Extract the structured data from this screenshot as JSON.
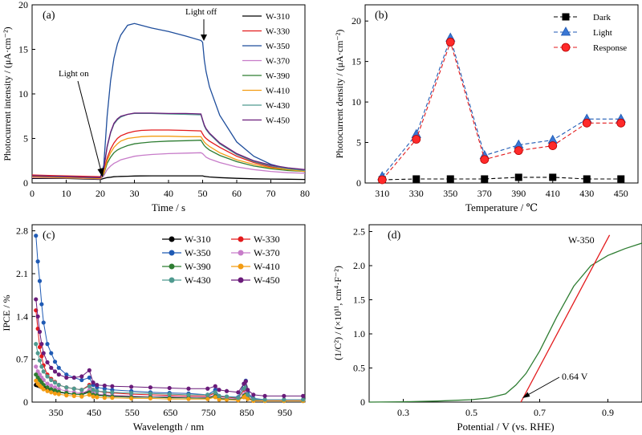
{
  "chart_data": [
    {
      "panel": "(a)",
      "type": "line",
      "xlabel": "Time / s",
      "ylabel": "Photocurrent intensity / (μA·cm⁻²)",
      "xlim": [
        0,
        80
      ],
      "ylim": [
        0,
        20
      ],
      "xticks": [
        0,
        10,
        20,
        30,
        40,
        50,
        60,
        70,
        80
      ],
      "yticks": [
        0,
        5,
        10,
        15,
        20
      ],
      "legend_position": "top-right",
      "annotations": [
        {
          "text": "Light on",
          "x": 21,
          "y": 0.6
        },
        {
          "text": "Light off",
          "x": 50,
          "y": 15.8
        }
      ],
      "x": [
        0,
        5,
        10,
        15,
        20,
        21,
        22,
        23,
        24,
        25,
        26,
        28,
        30,
        32,
        35,
        40,
        45,
        49.5,
        50,
        50.5,
        51,
        52,
        55,
        60,
        65,
        70,
        75,
        80
      ],
      "series": [
        {
          "name": "W-310",
          "color": "#000000",
          "values": [
            0.5,
            0.5,
            0.5,
            0.45,
            0.4,
            0.5,
            0.6,
            0.65,
            0.7,
            0.72,
            0.74,
            0.76,
            0.78,
            0.79,
            0.8,
            0.8,
            0.8,
            0.8,
            0.8,
            0.75,
            0.72,
            0.68,
            0.6,
            0.52,
            0.47,
            0.44,
            0.42,
            0.4
          ]
        },
        {
          "name": "W-330",
          "color": "#e31a1c",
          "values": [
            0.9,
            0.85,
            0.8,
            0.75,
            0.7,
            1.3,
            2.8,
            3.8,
            4.5,
            5.0,
            5.3,
            5.6,
            5.8,
            5.9,
            5.95,
            5.95,
            5.9,
            5.85,
            5.5,
            5.2,
            5.0,
            4.7,
            4.0,
            3.0,
            2.3,
            1.8,
            1.5,
            1.3
          ]
        },
        {
          "name": "W-350",
          "color": "#1f4e9c",
          "values": [
            0.8,
            0.75,
            0.7,
            0.65,
            0.6,
            2.0,
            7.5,
            11.5,
            14.0,
            15.6,
            16.6,
            17.7,
            17.9,
            17.7,
            17.4,
            17.0,
            16.5,
            16.0,
            15.8,
            13.8,
            12.5,
            10.8,
            7.6,
            4.6,
            3.0,
            2.1,
            1.6,
            1.3
          ]
        },
        {
          "name": "W-370",
          "color": "#c77cc9",
          "values": [
            0.6,
            0.58,
            0.55,
            0.5,
            0.45,
            0.8,
            1.5,
            1.9,
            2.2,
            2.4,
            2.6,
            2.8,
            3.0,
            3.1,
            3.2,
            3.3,
            3.35,
            3.4,
            3.3,
            3.1,
            2.9,
            2.7,
            2.3,
            1.8,
            1.5,
            1.3,
            1.15,
            1.1
          ]
        },
        {
          "name": "W-390",
          "color": "#2e7d32",
          "values": [
            0.7,
            0.65,
            0.6,
            0.55,
            0.5,
            1.0,
            2.2,
            2.9,
            3.4,
            3.7,
            3.9,
            4.2,
            4.4,
            4.5,
            4.6,
            4.7,
            4.75,
            4.8,
            4.5,
            4.2,
            4.0,
            3.7,
            3.1,
            2.4,
            1.9,
            1.6,
            1.4,
            1.3
          ]
        },
        {
          "name": "W-410",
          "color": "#f39c12",
          "values": [
            0.7,
            0.65,
            0.6,
            0.55,
            0.5,
            1.1,
            2.5,
            3.4,
            4.0,
            4.4,
            4.7,
            5.0,
            5.1,
            5.2,
            5.25,
            5.25,
            5.2,
            5.2,
            4.9,
            4.6,
            4.4,
            4.1,
            3.4,
            2.6,
            2.1,
            1.7,
            1.5,
            1.3
          ]
        },
        {
          "name": "W-430",
          "color": "#4f9a8f",
          "values": [
            0.8,
            0.75,
            0.7,
            0.65,
            0.6,
            1.6,
            4.0,
            5.6,
            6.6,
            7.1,
            7.4,
            7.7,
            7.8,
            7.8,
            7.8,
            7.75,
            7.7,
            7.65,
            7.0,
            6.4,
            6.0,
            5.5,
            4.4,
            3.2,
            2.4,
            1.9,
            1.6,
            1.4
          ]
        },
        {
          "name": "W-450",
          "color": "#6a1b7a",
          "values": [
            0.8,
            0.75,
            0.7,
            0.65,
            0.6,
            1.6,
            4.1,
            5.7,
            6.7,
            7.2,
            7.5,
            7.7,
            7.85,
            7.85,
            7.85,
            7.8,
            7.8,
            7.75,
            7.1,
            6.5,
            6.1,
            5.6,
            4.5,
            3.3,
            2.5,
            2.0,
            1.7,
            1.5
          ]
        }
      ]
    },
    {
      "panel": "(b)",
      "type": "line",
      "xlabel": "Temperature / ℃",
      "ylabel": "Photocurrent density / (μA·cm⁻²)",
      "xlim": [
        300,
        460
      ],
      "ylim": [
        0,
        22
      ],
      "xticks": [
        310,
        330,
        350,
        370,
        390,
        410,
        430,
        450
      ],
      "yticks": [
        0,
        5,
        10,
        15,
        20
      ],
      "legend_position": "top-right",
      "x": [
        310,
        330,
        350,
        370,
        390,
        410,
        430,
        450
      ],
      "series": [
        {
          "name": "Dark",
          "color": "#000000",
          "marker": "square",
          "values": [
            0.4,
            0.5,
            0.5,
            0.5,
            0.7,
            0.7,
            0.5,
            0.5
          ]
        },
        {
          "name": "Light",
          "color": "#1f5ab4",
          "marker": "triangle",
          "values": [
            0.8,
            6.0,
            17.9,
            3.4,
            4.7,
            5.3,
            7.9,
            7.9
          ]
        },
        {
          "name": "Response",
          "color": "#e31a1c",
          "marker": "circle",
          "values": [
            0.4,
            5.4,
            17.4,
            2.9,
            4.0,
            4.6,
            7.4,
            7.4
          ]
        }
      ]
    },
    {
      "panel": "(c)",
      "type": "line",
      "xlabel": "Wavelength / nm",
      "ylabel": "IPCE / %",
      "xlim": [
        290,
        1005
      ],
      "ylim": [
        0,
        2.9
      ],
      "xticks": [
        350,
        450,
        550,
        650,
        750,
        850,
        950
      ],
      "yticks": [
        0,
        0.7,
        1.4,
        2.1,
        2.8
      ],
      "legend_position": "top",
      "x": [
        300,
        305,
        310,
        315,
        320,
        330,
        340,
        350,
        360,
        380,
        400,
        420,
        440,
        450,
        460,
        480,
        500,
        550,
        600,
        650,
        700,
        750,
        770,
        780,
        800,
        830,
        845,
        850,
        855,
        870,
        900,
        950,
        1000
      ],
      "series": [
        {
          "name": "W-310",
          "color": "#000000",
          "values": [
            0.28,
            0.27,
            0.26,
            0.25,
            0.24,
            0.22,
            0.2,
            0.18,
            0.16,
            0.14,
            0.13,
            0.13,
            0.18,
            0.14,
            0.12,
            0.11,
            0.1,
            0.09,
            0.08,
            0.08,
            0.07,
            0.07,
            0.1,
            0.06,
            0.05,
            0.04,
            0.08,
            0.1,
            0.07,
            0.03,
            0.02,
            0.02,
            0.02
          ]
        },
        {
          "name": "W-330",
          "color": "#e31a1c",
          "values": [
            1.5,
            1.2,
            0.9,
            0.75,
            0.6,
            0.45,
            0.38,
            0.33,
            0.28,
            0.24,
            0.22,
            0.2,
            0.28,
            0.2,
            0.18,
            0.16,
            0.15,
            0.13,
            0.12,
            0.11,
            0.1,
            0.1,
            0.15,
            0.09,
            0.08,
            0.06,
            0.2,
            0.22,
            0.12,
            0.05,
            0.03,
            0.03,
            0.03
          ]
        },
        {
          "name": "W-350",
          "color": "#1f5ab4",
          "values": [
            2.72,
            2.3,
            1.98,
            1.6,
            1.3,
            0.95,
            0.8,
            0.66,
            0.56,
            0.45,
            0.4,
            0.36,
            0.4,
            0.28,
            0.24,
            0.22,
            0.2,
            0.18,
            0.16,
            0.15,
            0.14,
            0.12,
            0.2,
            0.1,
            0.09,
            0.08,
            0.3,
            0.35,
            0.15,
            0.06,
            0.04,
            0.04,
            0.04
          ]
        },
        {
          "name": "W-370",
          "color": "#c77cc9",
          "values": [
            0.58,
            0.5,
            0.45,
            0.4,
            0.36,
            0.3,
            0.27,
            0.24,
            0.21,
            0.18,
            0.16,
            0.15,
            0.2,
            0.15,
            0.13,
            0.12,
            0.11,
            0.1,
            0.09,
            0.09,
            0.08,
            0.08,
            0.12,
            0.07,
            0.06,
            0.05,
            0.12,
            0.15,
            0.08,
            0.04,
            0.03,
            0.03,
            0.03
          ]
        },
        {
          "name": "W-390",
          "color": "#2e7d32",
          "values": [
            0.45,
            0.4,
            0.36,
            0.32,
            0.28,
            0.24,
            0.21,
            0.19,
            0.17,
            0.15,
            0.13,
            0.12,
            0.16,
            0.12,
            0.11,
            0.1,
            0.09,
            0.08,
            0.08,
            0.07,
            0.07,
            0.06,
            0.1,
            0.06,
            0.05,
            0.04,
            0.1,
            0.12,
            0.06,
            0.03,
            0.02,
            0.02,
            0.02
          ]
        },
        {
          "name": "W-410",
          "color": "#f39c12",
          "values": [
            0.35,
            0.3,
            0.27,
            0.24,
            0.21,
            0.18,
            0.16,
            0.14,
            0.13,
            0.11,
            0.1,
            0.09,
            0.12,
            0.09,
            0.08,
            0.07,
            0.07,
            0.06,
            0.06,
            0.05,
            0.05,
            0.05,
            0.08,
            0.04,
            0.04,
            0.03,
            0.08,
            0.1,
            0.05,
            0.02,
            0.02,
            0.02,
            0.02
          ]
        },
        {
          "name": "W-430",
          "color": "#4f9a8f",
          "values": [
            0.95,
            0.8,
            0.68,
            0.58,
            0.5,
            0.42,
            0.36,
            0.32,
            0.28,
            0.24,
            0.22,
            0.2,
            0.26,
            0.2,
            0.18,
            0.17,
            0.16,
            0.15,
            0.14,
            0.13,
            0.12,
            0.12,
            0.16,
            0.1,
            0.09,
            0.07,
            0.22,
            0.25,
            0.12,
            0.05,
            0.04,
            0.04,
            0.04
          ]
        },
        {
          "name": "W-450",
          "color": "#6a1b7a",
          "values": [
            1.68,
            1.4,
            1.15,
            0.95,
            0.8,
            0.65,
            0.56,
            0.5,
            0.45,
            0.4,
            0.4,
            0.42,
            0.52,
            0.32,
            0.28,
            0.27,
            0.26,
            0.25,
            0.24,
            0.23,
            0.22,
            0.22,
            0.26,
            0.2,
            0.18,
            0.16,
            0.3,
            0.34,
            0.2,
            0.12,
            0.1,
            0.1,
            0.1
          ]
        }
      ]
    },
    {
      "panel": "(d)",
      "type": "line",
      "xlabel": "Potential / V (vs. RHE)",
      "ylabel": "(1/C²) / (×10¹¹, cm⁴·F⁻²)",
      "xlim": [
        0.2,
        1.0
      ],
      "ylim": [
        0,
        2.6
      ],
      "xticks": [
        0.3,
        0.5,
        0.7,
        0.9
      ],
      "yticks": [
        0,
        0.5,
        1.0,
        1.5,
        2.0,
        2.5
      ],
      "annotations": [
        {
          "text": "W-350",
          "x": 0.83,
          "y": 2.33
        },
        {
          "text": "0.64 V",
          "x": 0.64,
          "y": 0
        }
      ],
      "series": [
        {
          "name": "W-350",
          "color": "#2e7d32",
          "x": [
            0.2,
            0.3,
            0.4,
            0.5,
            0.55,
            0.6,
            0.63,
            0.66,
            0.7,
            0.75,
            0.8,
            0.85,
            0.9,
            0.95,
            1.0
          ],
          "values": [
            0.0,
            0.005,
            0.015,
            0.035,
            0.06,
            0.12,
            0.25,
            0.42,
            0.75,
            1.25,
            1.7,
            2.0,
            2.15,
            2.25,
            2.33
          ]
        },
        {
          "name": "",
          "color": "#e31a1c",
          "x": [
            0.645,
            0.905
          ],
          "values": [
            0,
            2.45
          ]
        }
      ]
    }
  ],
  "panels": [
    {
      "label": "(a)",
      "xlabel": "Time / s",
      "ylabel": "Photocurrent intensity / (μA·cm⁻²)",
      "xticks": [
        "0",
        "10",
        "20",
        "30",
        "40",
        "50",
        "60",
        "70",
        "80"
      ],
      "yticks": [
        "0",
        "5",
        "10",
        "15",
        "20"
      ],
      "light_on": "Light on",
      "light_off": "Light off",
      "legend": [
        "W-310",
        "W-330",
        "W-350",
        "W-370",
        "W-390",
        "W-410",
        "W-430",
        "W-450"
      ]
    },
    {
      "label": "(b)",
      "xlabel": "Temperature / ℃",
      "ylabel": "Photocurrent density / (μA·cm⁻²)",
      "xticks": [
        "310",
        "330",
        "350",
        "370",
        "390",
        "410",
        "430",
        "450"
      ],
      "yticks": [
        "0",
        "5",
        "10",
        "15",
        "20"
      ],
      "legend": [
        "Dark",
        "Light",
        "Response"
      ]
    },
    {
      "label": "(c)",
      "xlabel": "Wavelength / nm",
      "ylabel": "IPCE / %",
      "xticks": [
        "350",
        "450",
        "550",
        "650",
        "750",
        "850",
        "950"
      ],
      "yticks": [
        "0",
        "0.7",
        "1.4",
        "2.1",
        "2.8"
      ],
      "legend": [
        "W-310",
        "W-330",
        "W-350",
        "W-370",
        "W-390",
        "W-410",
        "W-430",
        "W-450"
      ]
    },
    {
      "label": "(d)",
      "xlabel": "Potential / V (vs. RHE)",
      "ylabel": "(1/C²) / (×10¹¹, cm⁴·F⁻²)",
      "xticks": [
        "0.3",
        "0.5",
        "0.7",
        "0.9"
      ],
      "yticks": [
        "0",
        "0.5",
        "1.0",
        "1.5",
        "2.0",
        "2.5"
      ],
      "series_label": "W-350",
      "intercept_label": "0.64 V"
    }
  ]
}
